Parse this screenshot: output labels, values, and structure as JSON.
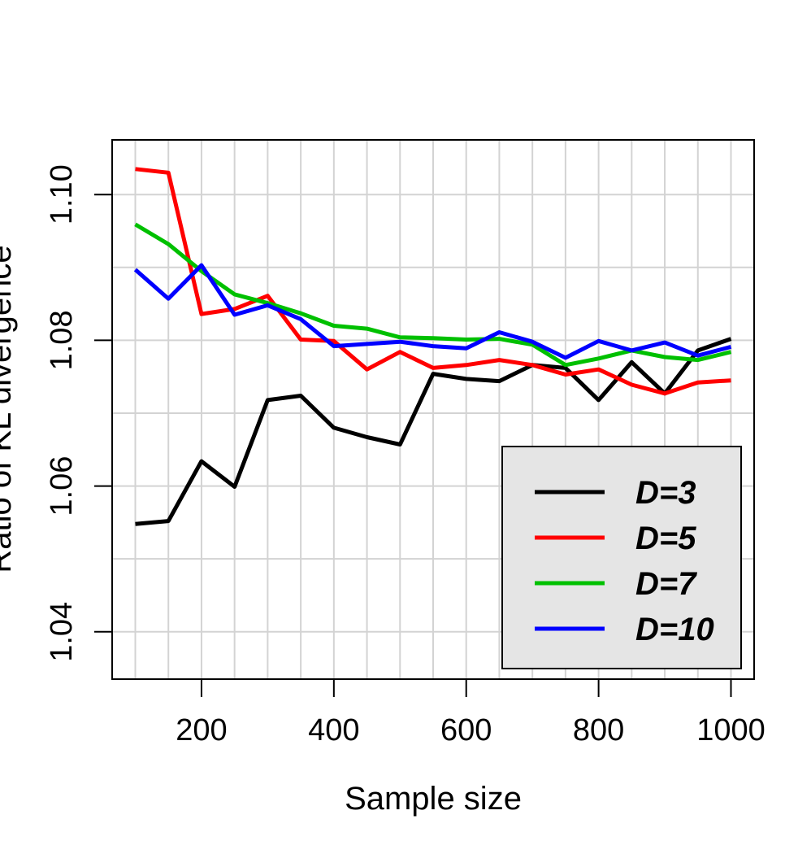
{
  "chart_data": {
    "type": "line",
    "title": "",
    "xlabel": "Sample size",
    "ylabel": "Ratio of KL divergence",
    "xlim": [
      65,
      1035
    ],
    "ylim": [
      1.0335,
      1.1075
    ],
    "x_ticks": [
      200,
      400,
      600,
      800,
      1000
    ],
    "x_tick_labels": [
      "200",
      "400",
      "600",
      "800",
      "1000"
    ],
    "y_ticks": [
      1.04,
      1.06,
      1.08,
      1.1
    ],
    "y_tick_labels": [
      "1.04",
      "1.06",
      "1.08",
      "1.10"
    ],
    "x_gridlines": [
      100,
      150,
      200,
      250,
      300,
      350,
      400,
      450,
      500,
      550,
      600,
      650,
      700,
      750,
      800,
      850,
      900,
      950,
      1000
    ],
    "y_gridlines": [
      1.04,
      1.05,
      1.06,
      1.07,
      1.08,
      1.09,
      1.1
    ],
    "grid": true,
    "legend_position": "bottom-right",
    "x": [
      100,
      150,
      200,
      250,
      300,
      350,
      400,
      450,
      500,
      550,
      600,
      650,
      700,
      750,
      800,
      850,
      900,
      950,
      1000
    ],
    "series": [
      {
        "name": "D=3",
        "color": "#000000",
        "values": [
          1.0548,
          1.0552,
          1.0634,
          1.0599,
          1.0718,
          1.0724,
          1.068,
          1.0667,
          1.0657,
          1.0754,
          1.0747,
          1.0744,
          1.0766,
          1.0762,
          1.0718,
          1.077,
          1.0727,
          1.0786,
          1.0802
        ]
      },
      {
        "name": "D=5",
        "color": "#ff0000",
        "values": [
          1.1035,
          1.103,
          1.0836,
          1.0843,
          1.0861,
          1.0801,
          1.0799,
          1.076,
          1.0784,
          1.0762,
          1.0766,
          1.0773,
          1.0766,
          1.0753,
          1.076,
          1.0739,
          1.0727,
          1.0742,
          1.0745
        ]
      },
      {
        "name": "D=7",
        "color": "#00c000",
        "values": [
          1.0959,
          1.0932,
          1.0895,
          1.0863,
          1.0851,
          1.0837,
          1.082,
          1.0816,
          1.0804,
          1.0803,
          1.0801,
          1.0802,
          1.0794,
          1.0766,
          1.0775,
          1.0786,
          1.0777,
          1.0773,
          1.0784
        ]
      },
      {
        "name": "D=10",
        "color": "#0000ff",
        "values": [
          1.0897,
          1.0857,
          1.0903,
          1.0835,
          1.0848,
          1.0829,
          1.0792,
          1.0795,
          1.0798,
          1.0792,
          1.0789,
          1.0811,
          1.0798,
          1.0776,
          1.0799,
          1.0786,
          1.0797,
          1.0779,
          1.0791
        ]
      }
    ]
  }
}
